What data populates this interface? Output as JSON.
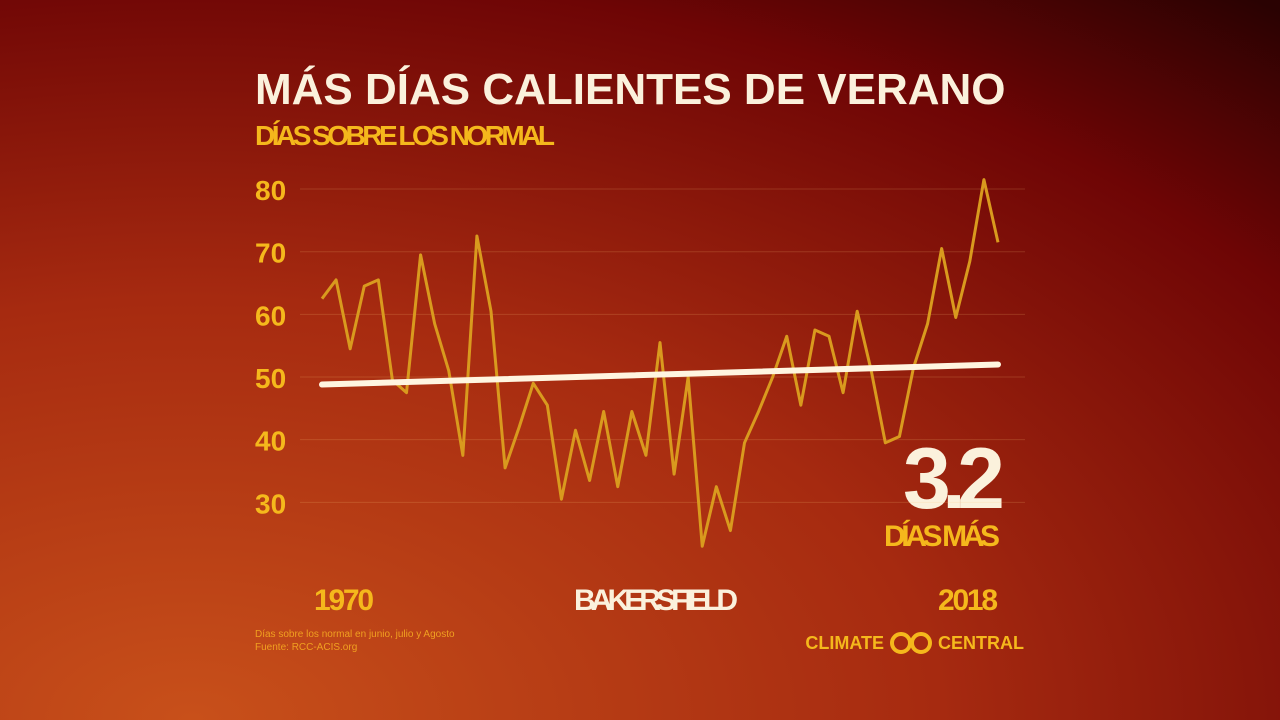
{
  "chart_data": {
    "type": "line",
    "title": "MÁS DÍAS CALIENTES DE VERANO",
    "subtitle": "DÍAS SOBRE LOS NORMAL",
    "x": [
      1970,
      1971,
      1972,
      1973,
      1974,
      1975,
      1976,
      1977,
      1978,
      1979,
      1980,
      1981,
      1982,
      1983,
      1984,
      1985,
      1986,
      1987,
      1988,
      1989,
      1990,
      1991,
      1992,
      1993,
      1994,
      1995,
      1996,
      1997,
      1998,
      1999,
      2000,
      2001,
      2002,
      2003,
      2004,
      2005,
      2006,
      2007,
      2008,
      2009,
      2010,
      2011,
      2012,
      2013,
      2014,
      2015,
      2016,
      2017,
      2018
    ],
    "series": [
      {
        "name": "BAKERSFIELD",
        "color": "#d99a1e",
        "values": [
          62.5,
          65.5,
          54.5,
          64.5,
          65.5,
          49.5,
          47.5,
          69.5,
          58.5,
          51,
          37.5,
          72.5,
          60.5,
          35.5,
          42,
          49,
          45.5,
          30.5,
          41.5,
          33.5,
          44.5,
          32.5,
          44.5,
          37.5,
          55.5,
          34.5,
          50,
          23,
          32.5,
          25.5,
          39.5,
          44.5,
          50,
          56.5,
          45.5,
          57.5,
          56.5,
          47.5,
          60.5,
          51,
          39.5,
          40.5,
          51.5,
          58.5,
          70.5,
          59.5,
          68.5,
          81.5,
          71.5
        ]
      }
    ],
    "trend": {
      "x": [
        1970,
        2018
      ],
      "values": [
        48.8,
        52.0
      ],
      "color": "#fff5e0"
    },
    "annotation": {
      "value": 3.2,
      "label": "DÍAS MÁS"
    },
    "xlim": [
      1970,
      2018
    ],
    "xticks": [
      1970,
      2018
    ],
    "ylim": [
      20,
      85
    ],
    "yticks": [
      30,
      40,
      50,
      60,
      70,
      80
    ],
    "grid": true,
    "footnote": [
      "Días sobre los normal en junio, julio y Agosto",
      "Fuente: RCC-ACIS.org"
    ],
    "logo": [
      "CLIMATE",
      "CENTRAL"
    ]
  }
}
